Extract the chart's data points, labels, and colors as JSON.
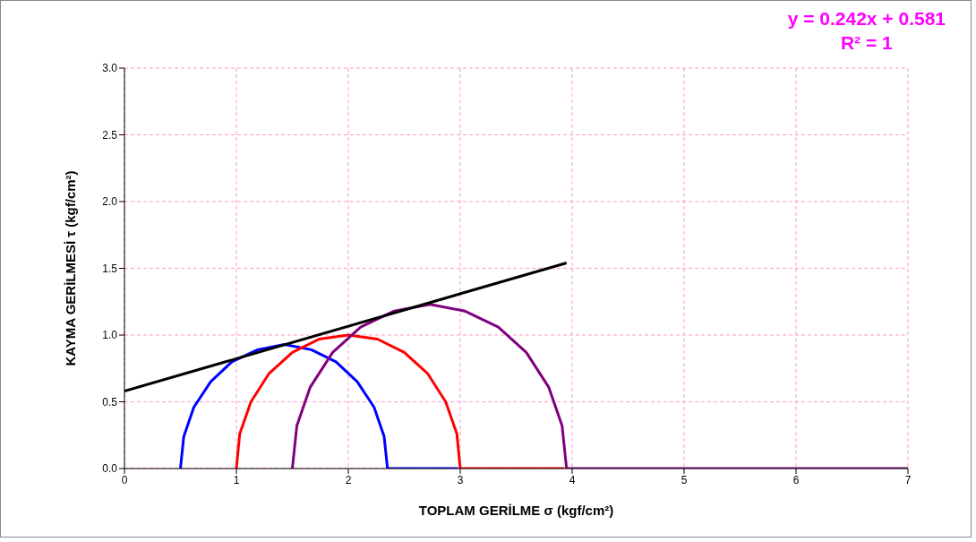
{
  "chart_data": {
    "type": "line",
    "xlabel": "TOPLAM GERİLME    σ  (kgf/cm²)",
    "ylabel": "KAYMA GERİLMESİ    τ  (kgf/cm²)",
    "annotations": [
      "y = 0.242x + 0.581",
      "R² = 1"
    ],
    "series": [
      {
        "color": "#0000ff",
        "x": [
          0.5,
          0.53,
          0.62,
          0.77,
          0.96,
          1.19,
          1.43,
          1.67,
          1.89,
          2.08,
          2.23,
          2.32,
          2.35,
          2.98
        ],
        "values": [
          0,
          0.24,
          0.46,
          0.65,
          0.8,
          0.89,
          0.93,
          0.89,
          0.8,
          0.65,
          0.46,
          0.24,
          0,
          0
        ]
      },
      {
        "color": "#ff0000",
        "x": [
          1,
          1.03,
          1.13,
          1.29,
          1.5,
          1.74,
          2,
          2.26,
          2.5,
          2.71,
          2.87,
          2.97,
          3,
          3.93
        ],
        "values": [
          0,
          0.26,
          0.5,
          0.71,
          0.87,
          0.97,
          1,
          0.97,
          0.87,
          0.71,
          0.5,
          0.26,
          0,
          0
        ]
      },
      {
        "color": "#800080",
        "x": [
          1.5,
          1.54,
          1.66,
          1.86,
          2.11,
          2.41,
          2.73,
          3.04,
          3.34,
          3.59,
          3.79,
          3.91,
          3.95,
          7
        ],
        "values": [
          0,
          0.32,
          0.61,
          0.87,
          1.06,
          1.18,
          1.23,
          1.18,
          1.06,
          0.87,
          0.61,
          0.32,
          0,
          0
        ]
      },
      {
        "color": "#000000",
        "x": [
          0,
          3.95
        ],
        "values": [
          0.58,
          1.54
        ]
      }
    ],
    "xlim": [
      0,
      7
    ],
    "xticks": [
      0,
      1,
      2,
      3,
      4,
      5,
      6,
      7
    ],
    "ylim": [
      0,
      3
    ],
    "yticks": [
      {
        "value": 0,
        "label": "0.0"
      },
      {
        "value": 0.5,
        "label": "0.5"
      },
      {
        "value": 1,
        "label": "1.0"
      },
      {
        "value": 1.5,
        "label": "1.5"
      },
      {
        "value": 2,
        "label": "2.0"
      },
      {
        "value": 2.5,
        "label": "2.5"
      },
      {
        "value": 3,
        "label": "3.0"
      }
    ],
    "grid": true,
    "marker": "none",
    "line_style": "solid"
  }
}
